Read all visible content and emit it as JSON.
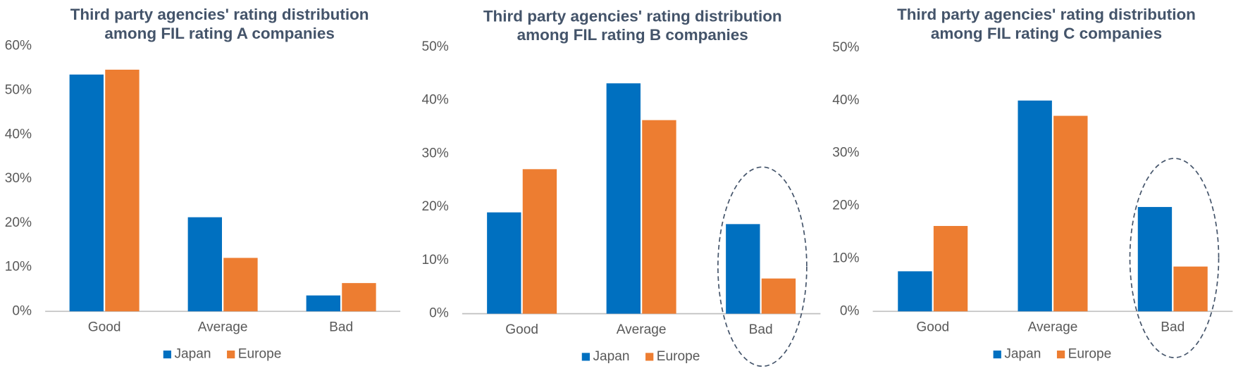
{
  "chart_data": [
    {
      "type": "bar",
      "title": [
        "Third party agencies' rating distribution",
        "among FIL rating A companies"
      ],
      "categories": [
        "Good",
        "Average",
        "Bad"
      ],
      "series": [
        {
          "name": "Japan",
          "color": "#0070c0",
          "values": [
            53.6,
            21.3,
            3.6
          ]
        },
        {
          "name": "Europe",
          "color": "#ed7d31",
          "values": [
            54.7,
            12.1,
            6.4
          ]
        }
      ],
      "ylim": [
        0,
        60
      ],
      "yticks": [
        {
          "value": 0,
          "label": "0%"
        },
        {
          "value": 10,
          "label": "10%"
        },
        {
          "value": 20,
          "label": "20%"
        },
        {
          "value": 30,
          "label": "30%"
        },
        {
          "value": 40,
          "label": "40%"
        },
        {
          "value": 50,
          "label": "50%"
        },
        {
          "value": 60,
          "label": "60%"
        }
      ],
      "grid": false,
      "legend": "bottom"
    },
    {
      "type": "bar",
      "title": [
        "Third party agencies' rating distribution",
        "among FIL rating B companies"
      ],
      "categories": [
        "Good",
        "Average",
        "Bad"
      ],
      "series": [
        {
          "name": "Japan",
          "color": "#0070c0",
          "values": [
            19.0,
            43.2,
            16.8
          ]
        },
        {
          "name": "Europe",
          "color": "#ed7d31",
          "values": [
            27.1,
            36.3,
            6.6
          ]
        }
      ],
      "ylim": [
        0,
        50
      ],
      "yticks": [
        {
          "value": 0,
          "label": "0%"
        },
        {
          "value": 10,
          "label": "10%"
        },
        {
          "value": 20,
          "label": "20%"
        },
        {
          "value": 30,
          "label": "30%"
        },
        {
          "value": 40,
          "label": "40%"
        },
        {
          "value": 50,
          "label": "50%"
        }
      ],
      "grid": false,
      "legend": "bottom"
    },
    {
      "type": "bar",
      "title": [
        "Third party agencies' rating distribution",
        "among FIL rating C companies"
      ],
      "categories": [
        "Good",
        "Average",
        "Bad"
      ],
      "series": [
        {
          "name": "Japan",
          "color": "#0070c0",
          "values": [
            7.6,
            40.0,
            19.8
          ]
        },
        {
          "name": "Europe",
          "color": "#ed7d31",
          "values": [
            16.2,
            37.1,
            8.5
          ]
        }
      ],
      "ylim": [
        0,
        50
      ],
      "yticks": [
        {
          "value": 0,
          "label": "0%"
        },
        {
          "value": 10,
          "label": "10%"
        },
        {
          "value": 20,
          "label": "20%"
        },
        {
          "value": 30,
          "label": "30%"
        },
        {
          "value": 40,
          "label": "40%"
        },
        {
          "value": 50,
          "label": "50%"
        }
      ],
      "grid": false,
      "legend": "bottom"
    }
  ]
}
